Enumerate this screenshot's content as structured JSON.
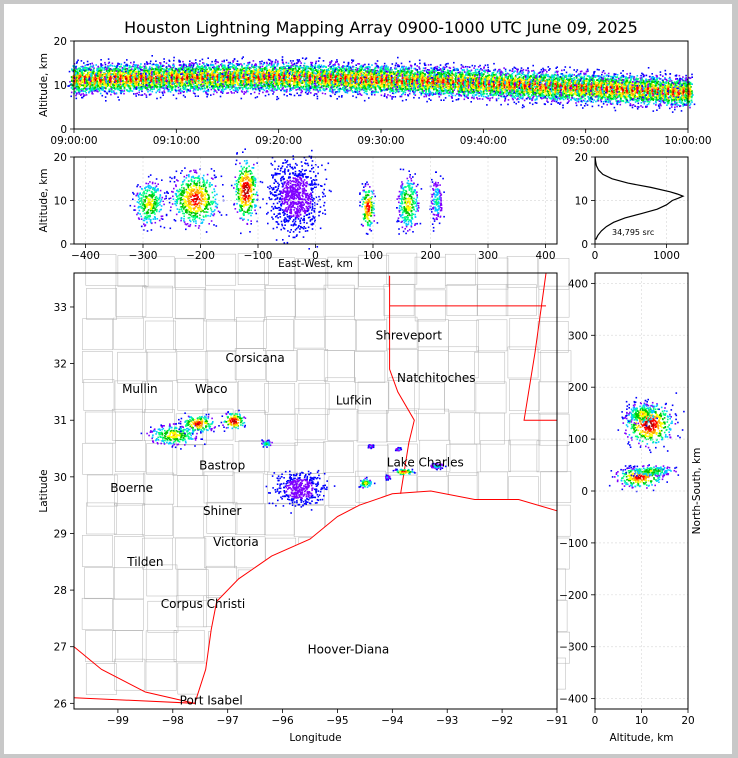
{
  "title": "Houston Lightning Mapping Array 0900-1000 UTC June 09, 2025",
  "colors": {
    "density": [
      "#0000ff",
      "#7f00ff",
      "#00c8ff",
      "#00ff7f",
      "#00c800",
      "#ffff00",
      "#ffa500",
      "#ff0000",
      "#b40000",
      "#ffffff"
    ],
    "boundary": "#ff0000",
    "county": "#b4b4b4",
    "mullin": "#ff7f2a",
    "hoover": "#0000ff"
  },
  "chart_data": [
    {
      "type": "heatmap",
      "name": "altitude-time",
      "ylabel": "Altitude, km",
      "ylim": [
        0,
        20
      ],
      "yticks": [
        "0",
        "10",
        "20"
      ],
      "xticks": [
        "09:00:00",
        "09:10:00",
        "09:20:00",
        "09:30:00",
        "09:40:00",
        "09:50:00",
        "10:00:00"
      ],
      "xlim_minutes": [
        0,
        60
      ],
      "core_altitude_km": [
        [
          0,
          11.5
        ],
        [
          20,
          12.0
        ],
        [
          35,
          11.0
        ],
        [
          50,
          9.5
        ],
        [
          60,
          8.5
        ]
      ],
      "grid": false
    },
    {
      "type": "heatmap",
      "name": "east-west-altitude",
      "xlabel": "East-West, km",
      "ylabel": "Altitude, km",
      "xlim": [
        -420,
        420
      ],
      "xticks": [
        "−400",
        "−300",
        "−200",
        "−100",
        "0",
        "100",
        "200",
        "300",
        "400"
      ],
      "ylim": [
        0,
        20
      ],
      "yticks": [
        "0",
        "10",
        "20"
      ],
      "clusters_km": [
        {
          "x": -290,
          "alt": 9.5,
          "w": 25,
          "h": 5,
          "level": 6
        },
        {
          "x": -210,
          "alt": 10.5,
          "w": 40,
          "h": 6,
          "level": 8
        },
        {
          "x": -122,
          "alt": 12.5,
          "w": 20,
          "h": 7,
          "level": 9
        },
        {
          "x": -35,
          "alt": 11.0,
          "w": 45,
          "h": 8,
          "level": 1
        },
        {
          "x": 90,
          "alt": 8.5,
          "w": 12,
          "h": 5,
          "level": 8
        },
        {
          "x": 160,
          "alt": 9.5,
          "w": 18,
          "h": 6,
          "level": 6
        },
        {
          "x": 210,
          "alt": 10.0,
          "w": 10,
          "h": 5,
          "level": 3
        }
      ],
      "grid": true
    },
    {
      "type": "line",
      "name": "source-altitude-histogram",
      "annotation": "34,795 src",
      "xlim": [
        0,
        1300
      ],
      "xticks": [
        "0",
        "1000"
      ],
      "ylim": [
        0,
        20
      ],
      "yticks": [
        "0",
        "10",
        "20"
      ],
      "y": [
        1,
        2,
        3,
        4,
        5,
        6,
        7,
        8,
        9,
        10,
        10.5,
        11,
        11.5,
        12,
        13,
        14,
        15,
        16,
        17,
        18,
        19,
        20
      ],
      "x": [
        10,
        40,
        90,
        160,
        260,
        420,
        650,
        870,
        1000,
        1080,
        1160,
        1230,
        1150,
        1050,
        780,
        460,
        240,
        110,
        50,
        20,
        8,
        2
      ],
      "grid": true
    },
    {
      "type": "scatter",
      "name": "plan-view-map",
      "xlabel": "Longitude",
      "ylabel": "Latitude",
      "xlim": [
        -99.8,
        -91.0
      ],
      "ylim": [
        25.9,
        33.6
      ],
      "xticks": [
        "−99",
        "−98",
        "−97",
        "−96",
        "−95",
        "−94",
        "−93",
        "−92",
        "−91"
      ],
      "yticks": [
        "26",
        "27",
        "28",
        "29",
        "30",
        "31",
        "32",
        "33"
      ],
      "cities": [
        {
          "label": "Shreveport",
          "lon": -93.7,
          "lat": 32.5
        },
        {
          "label": "Corsicana",
          "lon": -96.5,
          "lat": 32.1
        },
        {
          "label": "Mullin",
          "lon": -98.6,
          "lat": 31.55,
          "color": "mullin"
        },
        {
          "label": "Waco",
          "lon": -97.3,
          "lat": 31.55
        },
        {
          "label": "Natchitoches",
          "lon": -93.2,
          "lat": 31.75
        },
        {
          "label": "Lufkin",
          "lon": -94.7,
          "lat": 31.35
        },
        {
          "label": "Lake Charles",
          "lon": -93.4,
          "lat": 30.25
        },
        {
          "label": "Bastrop",
          "lon": -97.1,
          "lat": 30.2
        },
        {
          "label": "Boerne",
          "lon": -98.75,
          "lat": 29.8
        },
        {
          "label": "Shiner",
          "lon": -97.1,
          "lat": 29.4
        },
        {
          "label": "Victoria",
          "lon": -96.85,
          "lat": 28.85
        },
        {
          "label": "Tilden",
          "lon": -98.5,
          "lat": 28.5
        },
        {
          "label": "Corpus Christi",
          "lon": -97.45,
          "lat": 27.75
        },
        {
          "label": "Hoover-Diana",
          "lon": -94.8,
          "lat": 26.95,
          "color": "hoover"
        },
        {
          "label": "Port Isabel",
          "lon": -97.3,
          "lat": 26.05
        }
      ],
      "clusters": [
        {
          "lon": -98.0,
          "lat": 30.75,
          "rx": 0.45,
          "ry": 0.18,
          "level": 6
        },
        {
          "lon": -97.55,
          "lat": 30.95,
          "rx": 0.3,
          "ry": 0.15,
          "level": 8
        },
        {
          "lon": -96.9,
          "lat": 31.0,
          "rx": 0.2,
          "ry": 0.15,
          "level": 9
        },
        {
          "lon": -96.3,
          "lat": 30.6,
          "rx": 0.1,
          "ry": 0.05,
          "level": 4
        },
        {
          "lon": -95.7,
          "lat": 29.8,
          "rx": 0.45,
          "ry": 0.3,
          "level": 1
        },
        {
          "lon": -94.5,
          "lat": 29.9,
          "rx": 0.12,
          "ry": 0.08,
          "level": 6
        },
        {
          "lon": -93.8,
          "lat": 30.1,
          "rx": 0.18,
          "ry": 0.05,
          "level": 8
        },
        {
          "lon": -93.2,
          "lat": 30.2,
          "rx": 0.12,
          "ry": 0.05,
          "level": 3
        },
        {
          "lon": -94.1,
          "lat": 30.0,
          "rx": 0.05,
          "ry": 0.04,
          "level": 2
        },
        {
          "lon": -94.4,
          "lat": 30.55,
          "rx": 0.05,
          "ry": 0.03,
          "level": 2
        },
        {
          "lon": -93.9,
          "lat": 30.5,
          "rx": 0.05,
          "ry": 0.03,
          "level": 2
        }
      ]
    },
    {
      "type": "heatmap",
      "name": "altitude-north-south",
      "xlabel": "Altitude, km",
      "ylabel": "North-South, km",
      "xlim": [
        0,
        20
      ],
      "xticks": [
        "0",
        "10",
        "20"
      ],
      "ylim": [
        -420,
        420
      ],
      "yticks": [
        "−400",
        "−300",
        "−200",
        "−100",
        "0",
        "100",
        "200",
        "300",
        "400"
      ],
      "clusters_km": [
        {
          "alt": 11.5,
          "y": 130,
          "w": 5,
          "h": 40,
          "level": 9
        },
        {
          "alt": 10.0,
          "y": 150,
          "w": 3,
          "h": 20,
          "level": 6
        },
        {
          "alt": 9.5,
          "y": 28,
          "w": 5,
          "h": 20,
          "level": 8
        },
        {
          "alt": 12.0,
          "y": 40,
          "w": 5,
          "h": 10,
          "level": 5
        }
      ],
      "grid": true
    }
  ]
}
